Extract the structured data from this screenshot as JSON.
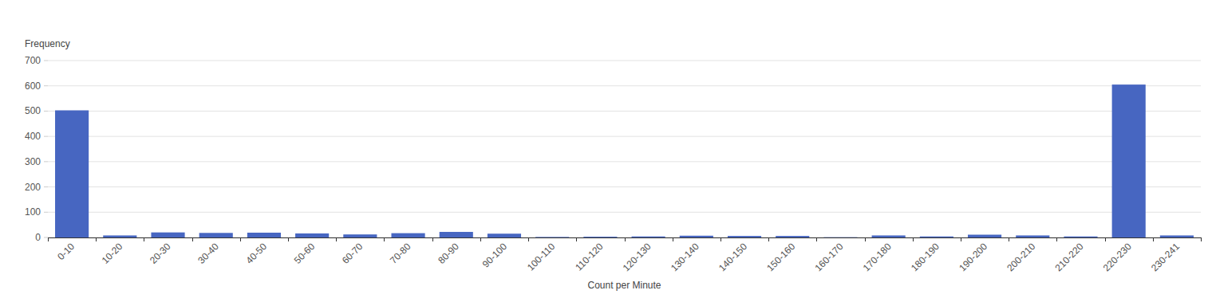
{
  "chart_data": {
    "type": "bar",
    "x_label": "Count per Minute",
    "y_label": "Frequency",
    "categories": [
      "0-10",
      "10-20",
      "20-30",
      "30-40",
      "40-50",
      "50-60",
      "60-70",
      "70-80",
      "80-90",
      "90-100",
      "100-110",
      "110-120",
      "120-130",
      "130-140",
      "140-150",
      "150-160",
      "160-170",
      "170-180",
      "180-190",
      "190-200",
      "200-210",
      "210-220",
      "220-230",
      "230-241"
    ],
    "values": [
      503,
      8,
      20,
      18,
      19,
      16,
      12,
      17,
      22,
      15,
      2,
      3,
      4,
      7,
      6,
      6,
      1,
      8,
      4,
      11,
      8,
      4,
      605,
      8
    ],
    "color": "#4766c1",
    "ylim": [
      0,
      700
    ],
    "yticks": [
      0,
      100,
      200,
      300,
      400,
      500,
      600,
      700
    ],
    "grid": true
  }
}
